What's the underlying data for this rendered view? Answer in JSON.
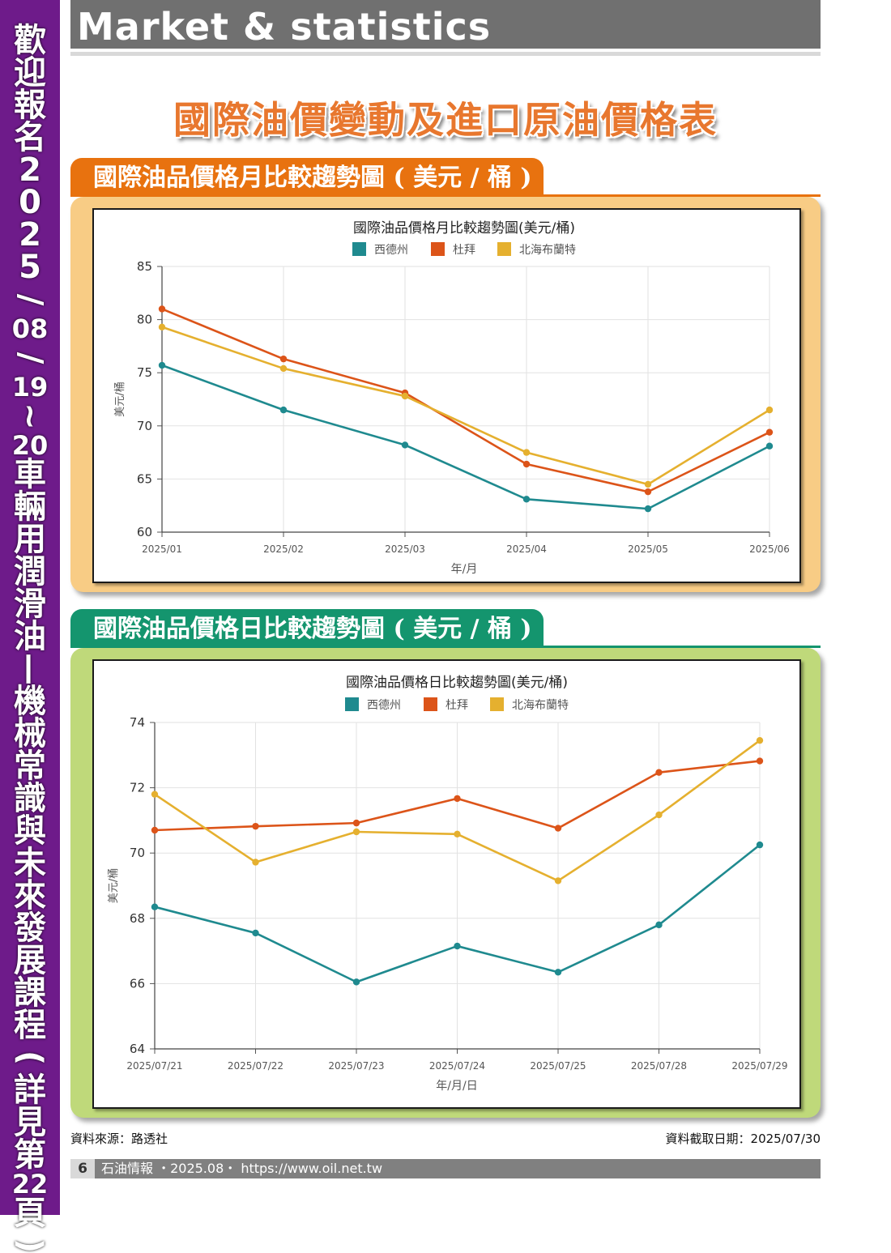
{
  "sidebar": {
    "text": "歡迎報名2025/08/19~20車輛用潤滑油—機械常識與未來發展課程(詳見第22頁)"
  },
  "header": {
    "title": "Market & statistics"
  },
  "main_title": "國際油價變動及進口原油價格表",
  "sections": [
    {
      "tab_label": "國際油品價格月比較趨勢圖 ( 美元 / 桶 )"
    },
    {
      "tab_label": "國際油品價格日比較趨勢圖 ( 美元 / 桶 )"
    }
  ],
  "chart_data": [
    {
      "type": "line",
      "title": "國際油品價格月比較趨勢圖(美元/桶)",
      "xlabel": "年/月",
      "ylabel": "美元/桶",
      "categories": [
        "2025/01",
        "2025/02",
        "2025/03",
        "2025/04",
        "2025/05",
        "2025/06"
      ],
      "ylim": [
        60,
        85
      ],
      "yticks": [
        60,
        65,
        70,
        75,
        80,
        85
      ],
      "grid": true,
      "legend": "top-center",
      "series": [
        {
          "name": "西德州",
          "color": "#1f8a8f",
          "values": [
            75.7,
            71.5,
            68.2,
            63.1,
            62.2,
            68.1
          ]
        },
        {
          "name": "杜拜",
          "color": "#dc5419",
          "values": [
            81.0,
            76.3,
            73.1,
            66.4,
            63.8,
            69.4
          ]
        },
        {
          "name": "北海布蘭特",
          "color": "#e5b02f",
          "values": [
            79.3,
            75.4,
            72.8,
            67.5,
            64.5,
            71.5
          ]
        }
      ]
    },
    {
      "type": "line",
      "title": "國際油品價格日比較趨勢圖(美元/桶)",
      "xlabel": "年/月/日",
      "ylabel": "美元/桶",
      "categories": [
        "2025/07/21",
        "2025/07/22",
        "2025/07/23",
        "2025/07/24",
        "2025/07/25",
        "2025/07/28",
        "2025/07/29"
      ],
      "ylim": [
        64,
        74
      ],
      "yticks": [
        64,
        66,
        68,
        70,
        72,
        74
      ],
      "grid": true,
      "legend": "top-center",
      "series": [
        {
          "name": "西德州",
          "color": "#1f8a8f",
          "values": [
            68.35,
            67.55,
            66.05,
            67.15,
            66.35,
            67.8,
            70.25
          ]
        },
        {
          "name": "杜拜",
          "color": "#dc5419",
          "values": [
            70.7,
            70.82,
            70.92,
            71.67,
            70.76,
            72.47,
            72.82
          ]
        },
        {
          "name": "北海布蘭特",
          "color": "#e5b02f",
          "values": [
            71.8,
            69.72,
            70.65,
            70.58,
            69.15,
            71.17,
            73.45
          ]
        }
      ]
    }
  ],
  "footer": {
    "source": "資料來源：路透社",
    "date": "資料截取日期：2025/07/30",
    "page_number": "6",
    "text": "石油情報 ・2025.08・ https://www.oil.net.tw"
  }
}
